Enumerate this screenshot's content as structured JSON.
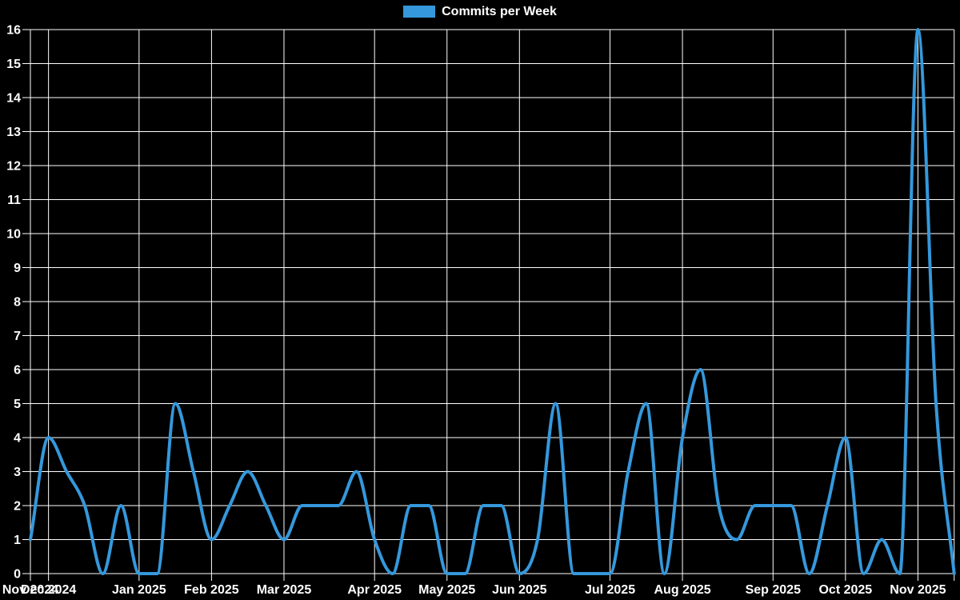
{
  "legend": {
    "label": "Commits per Week"
  },
  "chart_data": {
    "type": "line",
    "title": "Commits per Week",
    "xlabel": "",
    "ylabel": "",
    "background_color": "#000000",
    "grid_color": "#ffffff",
    "text_color": "#ffffff",
    "grid": true,
    "legend_position": "top",
    "ylim": [
      0,
      16
    ],
    "y_ticks": [
      0,
      1,
      2,
      3,
      4,
      5,
      6,
      7,
      8,
      9,
      10,
      11,
      12,
      13,
      14,
      15,
      16
    ],
    "x_ticks": [
      {
        "label": "Nov 2024",
        "week_index": 0
      },
      {
        "label": "Dec 2024",
        "week_index": 1
      },
      {
        "label": "Jan 2025",
        "week_index": 6
      },
      {
        "label": "Feb 2025",
        "week_index": 10
      },
      {
        "label": "Mar 2025",
        "week_index": 14
      },
      {
        "label": "Apr 2025",
        "week_index": 19
      },
      {
        "label": "May 2025",
        "week_index": 23
      },
      {
        "label": "Jun 2025",
        "week_index": 27
      },
      {
        "label": "Jul 2025",
        "week_index": 32
      },
      {
        "label": "Aug 2025",
        "week_index": 36
      },
      {
        "label": "Sep 2025",
        "week_index": 41
      },
      {
        "label": "Oct 2025",
        "week_index": 45
      },
      {
        "label": "Nov 2025",
        "week_index": 49
      }
    ],
    "series": [
      {
        "name": "Commits per Week",
        "color": "#3598dc",
        "values": [
          1,
          4,
          3,
          2,
          0,
          2,
          0,
          0,
          5,
          3,
          1,
          2,
          3,
          2,
          1,
          2,
          2,
          2,
          3,
          1,
          0,
          2,
          2,
          0,
          0,
          2,
          2,
          0,
          1,
          5,
          0,
          0,
          0,
          3,
          5,
          0,
          4,
          6,
          2,
          1,
          2,
          2,
          2,
          0,
          2,
          4,
          0,
          1,
          0,
          16,
          5,
          0
        ]
      }
    ]
  }
}
